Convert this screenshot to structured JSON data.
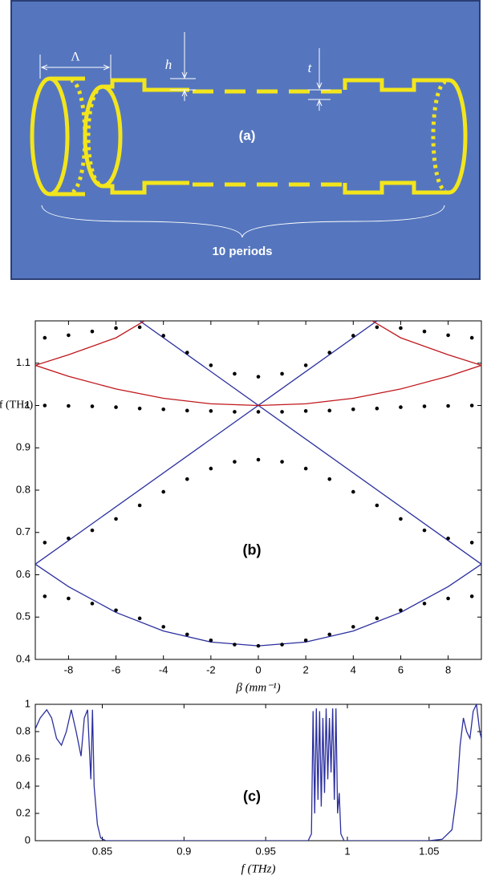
{
  "diagram": {
    "period": "Λ",
    "h": "h",
    "t": "t",
    "panel": "(a)",
    "periods": "10 periods"
  },
  "chart_data": [
    {
      "type": "line",
      "label": "(b)",
      "xlabel": "β (mm⁻¹)",
      "ylabel": "f (THz)",
      "xlim": [
        -9.4,
        9.4
      ],
      "ylim": [
        0.4,
        1.2
      ],
      "xticks": [
        -8,
        -6,
        -4,
        -2,
        0,
        2,
        4,
        6,
        8
      ],
      "yticks": [
        0.4,
        0.5,
        0.6,
        0.7,
        0.8,
        0.9,
        1,
        1.1
      ],
      "series": [
        {
          "style": "line",
          "color": "#2b2f9e",
          "x": [
            -9.4,
            5.0
          ],
          "y": [
            0.625,
            1.2
          ]
        },
        {
          "style": "line",
          "color": "#2b2f9e",
          "x": [
            -5.0,
            9.4
          ],
          "y": [
            1.2,
            0.625
          ]
        },
        {
          "style": "line",
          "color": "#2b2f9e",
          "x": [
            -9.4,
            -8,
            -6,
            -4,
            -2,
            0,
            2,
            4,
            6,
            8,
            9.4
          ],
          "y": [
            0.625,
            0.572,
            0.511,
            0.467,
            0.441,
            0.432,
            0.441,
            0.467,
            0.511,
            0.572,
            0.625
          ]
        },
        {
          "style": "line",
          "color": "#c0161b",
          "x": [
            -9.4,
            -8,
            -6,
            -4,
            -2,
            0,
            2,
            4,
            6,
            8,
            9.4
          ],
          "y": [
            1.095,
            1.069,
            1.039,
            1.017,
            1.004,
            1.0,
            1.004,
            1.017,
            1.039,
            1.069,
            1.095
          ]
        },
        {
          "style": "line",
          "color": "#c0161b",
          "x": [
            -9.4,
            -8,
            -6,
            -4.8
          ],
          "y": [
            1.095,
            1.12,
            1.16,
            1.2
          ]
        },
        {
          "style": "line",
          "color": "#c0161b",
          "x": [
            4.8,
            6,
            8,
            9.4
          ],
          "y": [
            1.2,
            1.16,
            1.12,
            1.095
          ]
        },
        {
          "style": "dots",
          "color": "#000000",
          "x": [
            -9,
            -8,
            -7,
            -6,
            -5,
            -4,
            -3,
            -2,
            -1,
            0,
            1,
            2,
            3,
            4,
            5,
            6,
            7,
            8,
            9
          ],
          "y": [
            0.549,
            0.544,
            0.532,
            0.516,
            0.497,
            0.477,
            0.459,
            0.445,
            0.435,
            0.432,
            0.435,
            0.445,
            0.459,
            0.477,
            0.497,
            0.516,
            0.532,
            0.544,
            0.549
          ]
        },
        {
          "style": "dots",
          "color": "#000000",
          "x": [
            -9,
            -8,
            -7,
            -6,
            -5,
            -4,
            -3,
            -2,
            -1,
            0,
            1,
            2,
            3,
            4,
            5,
            6,
            7,
            8,
            9
          ],
          "y": [
            0.676,
            0.686,
            0.705,
            0.732,
            0.764,
            0.796,
            0.826,
            0.851,
            0.867,
            0.872,
            0.867,
            0.851,
            0.826,
            0.796,
            0.764,
            0.732,
            0.705,
            0.686,
            0.676
          ]
        },
        {
          "style": "dots",
          "color": "#000000",
          "x": [
            -9,
            -8,
            -7,
            -6,
            -5,
            -4,
            -3,
            -2,
            -1,
            0,
            1,
            2,
            3,
            4,
            5,
            6,
            7,
            8,
            9
          ],
          "y": [
            1.0,
            0.999,
            0.998,
            0.996,
            0.993,
            0.991,
            0.988,
            0.987,
            0.985,
            0.985,
            0.985,
            0.987,
            0.988,
            0.991,
            0.993,
            0.996,
            0.998,
            0.999,
            1.0
          ]
        },
        {
          "style": "dots",
          "color": "#000000",
          "x": [
            -9,
            -8,
            -7,
            -6,
            -5,
            -4,
            -3,
            -2,
            -1,
            0,
            1,
            2,
            3,
            4,
            5,
            6,
            7,
            8,
            9
          ],
          "y": [
            1.16,
            1.166,
            1.175,
            1.183,
            1.185,
            1.165,
            1.125,
            1.095,
            1.075,
            1.068,
            1.075,
            1.095,
            1.125,
            1.165,
            1.185,
            1.183,
            1.175,
            1.166,
            1.16
          ]
        }
      ]
    },
    {
      "type": "line",
      "label": "(c)",
      "xlabel": "f (THz)",
      "xlim": [
        0.809,
        1.082
      ],
      "ylim": [
        0,
        1
      ],
      "xticks": [
        0.85,
        0.9,
        0.95,
        1,
        1.05
      ],
      "yticks": [
        0,
        0.2,
        0.4,
        0.6,
        0.8,
        1
      ],
      "series": [
        {
          "style": "line",
          "color": "#2b2f9e",
          "x": [
            0.809,
            0.812,
            0.816,
            0.819,
            0.822,
            0.825,
            0.828,
            0.831,
            0.834,
            0.837,
            0.839,
            0.841,
            0.842,
            0.843,
            0.844,
            0.845,
            0.847,
            0.849,
            0.852,
            0.9,
            0.95,
            0.976,
            0.978,
            0.979,
            0.98,
            0.981,
            0.982,
            0.983,
            0.984,
            0.985,
            0.986,
            0.987,
            0.988,
            0.989,
            0.99,
            0.991,
            0.992,
            0.993,
            0.994,
            0.995,
            0.996,
            0.998,
            1.0,
            1.05,
            1.058,
            1.064,
            1.067,
            1.069,
            1.071,
            1.073,
            1.075,
            1.077,
            1.079,
            1.081,
            1.082
          ],
          "y": [
            0.82,
            0.9,
            0.96,
            0.9,
            0.75,
            0.7,
            0.8,
            0.96,
            0.8,
            0.62,
            0.9,
            0.96,
            0.7,
            0.45,
            0.96,
            0.4,
            0.12,
            0.02,
            0,
            0,
            0,
            0,
            0.05,
            0.95,
            0.2,
            0.97,
            0.3,
            0.95,
            0.25,
            0.9,
            0.35,
            0.97,
            0.45,
            0.9,
            0.5,
            0.97,
            0.3,
            0.97,
            0.2,
            0.35,
            0.05,
            0,
            0,
            0,
            0.01,
            0.08,
            0.35,
            0.7,
            0.9,
            0.8,
            0.75,
            0.95,
            1.0,
            0.8,
            0.75
          ]
        }
      ]
    }
  ]
}
